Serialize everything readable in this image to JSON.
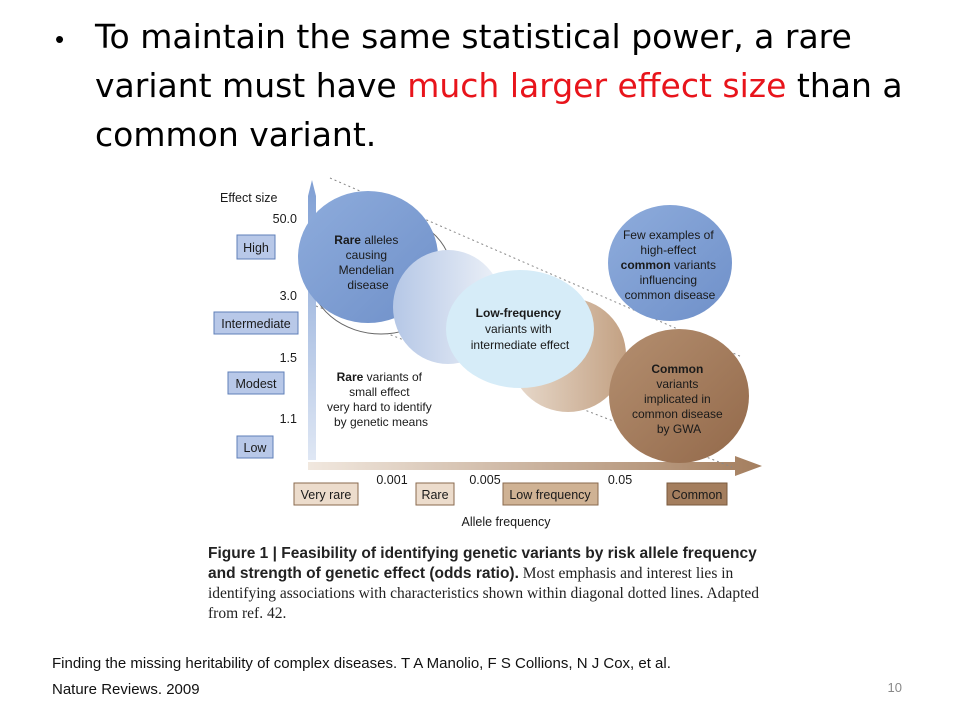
{
  "slide": {
    "bullet": {
      "part1": "To maintain the same statistical power, a rare variant must have ",
      "highlight": "much larger effect size",
      "part2": " than a common variant.",
      "highlight_color": "#e8141b"
    },
    "figure": {
      "y_axis_title": "Effect size",
      "x_axis_title": "Allele frequency",
      "y_ticks": [
        "50.0",
        "3.0",
        "1.5",
        "1.1"
      ],
      "x_ticks": [
        "0.001",
        "0.005",
        "0.05"
      ],
      "y_categories": [
        "High",
        "Intermediate",
        "Modest",
        "Low"
      ],
      "x_categories": [
        "Very rare",
        "Rare",
        "Low frequency",
        "Common"
      ],
      "bubbles": {
        "rare_mendelian": {
          "bold": "Rare",
          "line1": " alleles",
          "line2": "causing",
          "line3": "Mendelian",
          "line4": "disease"
        },
        "few_examples": {
          "line1": "Few examples of",
          "line2": "high-effect",
          "bold": "common",
          "line3b": " variants",
          "line4": "influencing",
          "line5": "common disease"
        },
        "low_frequency": {
          "bold": "Low-frequency",
          "line2": "variants with",
          "line3": "intermediate effect"
        },
        "rare_small": {
          "bold": "Rare",
          "line1b": " variants of",
          "line2": "small effect",
          "line3": "very hard to identify",
          "line4": "by genetic means"
        },
        "common": {
          "bold": "Common",
          "line2": "variants",
          "line3": "implicated in",
          "line4": "common disease",
          "line5": "by GWA"
        }
      },
      "colors": {
        "blue": "#7f9fd4",
        "tan": "#a47e5e",
        "light_blue": "#d6ecf8"
      }
    },
    "caption": {
      "bold": "Figure 1 | Feasibility of identifying genetic variants by risk allele frequency and strength of genetic effect (odds ratio).",
      "rest": " Most emphasis and interest lies in identifying associations with characteristics shown within diagonal dotted lines. Adapted from ref. 42."
    },
    "reference": {
      "line1": "Finding the missing heritability of complex diseases. T A Manolio, F S Collions, N J Cox, et al.",
      "line2": "Nature Reviews. 2009"
    },
    "page_number": "10"
  }
}
